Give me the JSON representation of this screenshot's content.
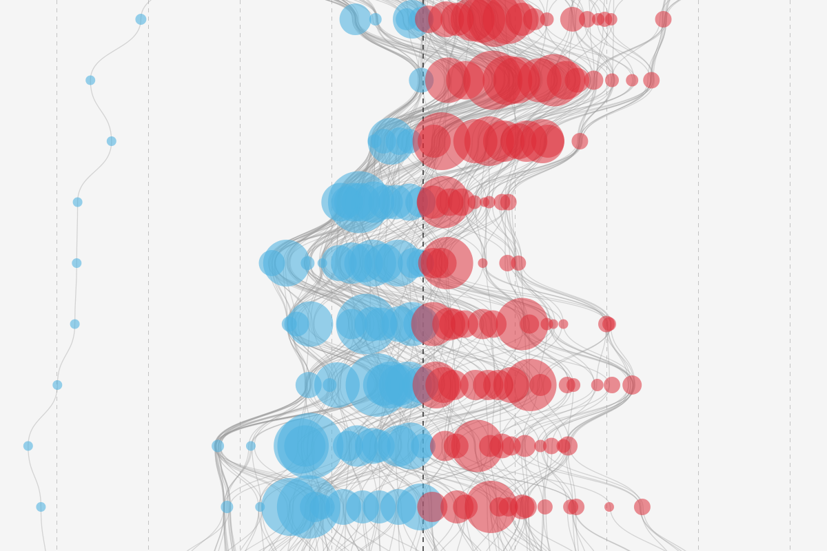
{
  "colors": {
    "background": "#f5f5f5",
    "dem": "#4eb1e0",
    "rep": "#dd2a35",
    "center_line": "#333333",
    "grid": "#c3c3c3",
    "trail": "#9c9c9c"
  },
  "chart_data": {
    "type": "scatter",
    "title": "",
    "xlabel": "",
    "ylabel": "",
    "legend": "none",
    "grid": true,
    "xlim": [
      -46,
      44
    ],
    "ylim": [
      0.7,
      9.1
    ],
    "x_gridlines": [
      -40,
      -30,
      -20,
      -10,
      0,
      10,
      20,
      30,
      40
    ],
    "center_x": 0,
    "series": [
      {
        "party": "dem",
        "points": [
          {
            "x": -7.4,
            "y": 1,
            "r": 23
          },
          {
            "x": -5.2,
            "y": 1,
            "r": 9
          },
          {
            "x": -1.2,
            "y": 1,
            "r": 28
          },
          {
            "x": -1.8,
            "y": 1,
            "r": 16
          },
          {
            "x": -0.2,
            "y": 1,
            "r": 18
          },
          {
            "x": -0.2,
            "y": 2,
            "r": 18
          },
          {
            "x": -3.5,
            "y": 3,
            "r": 34
          },
          {
            "x": -5.3,
            "y": 3,
            "r": 10
          },
          {
            "x": -4.3,
            "y": 3,
            "r": 18
          },
          {
            "x": -2.6,
            "y": 3,
            "r": 20
          },
          {
            "x": -1.5,
            "y": 3,
            "r": 18
          },
          {
            "x": -7.0,
            "y": 4,
            "r": 45
          },
          {
            "x": -9.0,
            "y": 4,
            "r": 28
          },
          {
            "x": -8.3,
            "y": 4,
            "r": 23
          },
          {
            "x": -7.6,
            "y": 4,
            "r": 28
          },
          {
            "x": -6.8,
            "y": 4,
            "r": 28
          },
          {
            "x": -5.4,
            "y": 4,
            "r": 30
          },
          {
            "x": -4.1,
            "y": 4,
            "r": 25
          },
          {
            "x": -3.0,
            "y": 4,
            "r": 25
          },
          {
            "x": -1.5,
            "y": 4,
            "r": 27
          },
          {
            "x": -0.3,
            "y": 4,
            "r": 22
          },
          {
            "x": -14.9,
            "y": 5,
            "r": 34
          },
          {
            "x": -16.5,
            "y": 5,
            "r": 19
          },
          {
            "x": -12.6,
            "y": 5,
            "r": 10
          },
          {
            "x": -11.0,
            "y": 5,
            "r": 7
          },
          {
            "x": -9.2,
            "y": 5,
            "r": 26
          },
          {
            "x": -7.8,
            "y": 5,
            "r": 30
          },
          {
            "x": -6.5,
            "y": 5,
            "r": 28
          },
          {
            "x": -5.5,
            "y": 5,
            "r": 34
          },
          {
            "x": -4.3,
            "y": 5,
            "r": 28
          },
          {
            "x": -2.7,
            "y": 5,
            "r": 34
          },
          {
            "x": -1.1,
            "y": 5,
            "r": 22
          },
          {
            "x": -0.3,
            "y": 5,
            "r": 20
          },
          {
            "x": -12.3,
            "y": 6,
            "r": 33
          },
          {
            "x": -14.6,
            "y": 6,
            "r": 11
          },
          {
            "x": -13.8,
            "y": 6,
            "r": 18
          },
          {
            "x": -7.8,
            "y": 6,
            "r": 22
          },
          {
            "x": -6.2,
            "y": 6,
            "r": 44
          },
          {
            "x": -5.6,
            "y": 6,
            "r": 25
          },
          {
            "x": -4.6,
            "y": 6,
            "r": 24
          },
          {
            "x": -2.6,
            "y": 6,
            "r": 26
          },
          {
            "x": -1.2,
            "y": 6,
            "r": 32
          },
          {
            "x": -0.2,
            "y": 6,
            "r": 26
          },
          {
            "x": -12.5,
            "y": 7,
            "r": 19
          },
          {
            "x": -10.2,
            "y": 7,
            "r": 10
          },
          {
            "x": -9.4,
            "y": 7,
            "r": 33
          },
          {
            "x": -5.0,
            "y": 7,
            "r": 46
          },
          {
            "x": -4.3,
            "y": 7,
            "r": 30
          },
          {
            "x": -3.6,
            "y": 7,
            "r": 34
          },
          {
            "x": -2.6,
            "y": 7,
            "r": 30
          },
          {
            "x": -1.6,
            "y": 7,
            "r": 34
          },
          {
            "x": -0.3,
            "y": 7,
            "r": 26
          },
          {
            "x": -22.4,
            "y": 8,
            "r": 9
          },
          {
            "x": -18.8,
            "y": 8,
            "r": 7
          },
          {
            "x": -13.3,
            "y": 8,
            "r": 40
          },
          {
            "x": -12.3,
            "y": 8,
            "r": 48
          },
          {
            "x": -12.9,
            "y": 8,
            "r": 30
          },
          {
            "x": -8.2,
            "y": 8,
            "r": 22
          },
          {
            "x": -7.2,
            "y": 8,
            "r": 30
          },
          {
            "x": -5.5,
            "y": 8,
            "r": 26
          },
          {
            "x": -4.9,
            "y": 8,
            "r": 24
          },
          {
            "x": -2.7,
            "y": 8,
            "r": 30
          },
          {
            "x": -1.4,
            "y": 8,
            "r": 34
          },
          {
            "x": 0.0,
            "y": 8,
            "r": 18
          },
          {
            "x": -21.4,
            "y": 9,
            "r": 9
          },
          {
            "x": -17.8,
            "y": 9,
            "r": 7
          },
          {
            "x": -14.5,
            "y": 9,
            "r": 42
          },
          {
            "x": -12.5,
            "y": 9,
            "r": 46
          },
          {
            "x": -11.8,
            "y": 9,
            "r": 22
          },
          {
            "x": -11.0,
            "y": 9,
            "r": 18
          },
          {
            "x": -8.7,
            "y": 9,
            "r": 26
          },
          {
            "x": -6.6,
            "y": 9,
            "r": 24
          },
          {
            "x": -4.8,
            "y": 9,
            "r": 24
          },
          {
            "x": -2.7,
            "y": 9,
            "r": 26
          },
          {
            "x": -0.3,
            "y": 9,
            "r": 34
          },
          {
            "x": -30.8,
            "y": 1,
            "r": 8
          },
          {
            "x": -36.3,
            "y": 2,
            "r": 7
          },
          {
            "x": -34.0,
            "y": 3,
            "r": 7
          },
          {
            "x": -37.7,
            "y": 4,
            "r": 7
          },
          {
            "x": -37.8,
            "y": 5,
            "r": 7
          },
          {
            "x": -38.0,
            "y": 6,
            "r": 7
          },
          {
            "x": -39.9,
            "y": 7,
            "r": 7
          },
          {
            "x": -43.1,
            "y": 8,
            "r": 7
          },
          {
            "x": -41.7,
            "y": 9,
            "r": 7
          }
        ]
      },
      {
        "party": "rep",
        "points": [
          {
            "x": 0.6,
            "y": 1,
            "r": 20
          },
          {
            "x": 2.5,
            "y": 1,
            "r": 26
          },
          {
            "x": 3.7,
            "y": 1,
            "r": 24
          },
          {
            "x": 5.4,
            "y": 1,
            "r": 32
          },
          {
            "x": 6.4,
            "y": 1,
            "r": 34
          },
          {
            "x": 7.8,
            "y": 1,
            "r": 40
          },
          {
            "x": 9.2,
            "y": 1,
            "r": 36
          },
          {
            "x": 10.8,
            "y": 1,
            "r": 24
          },
          {
            "x": 12.1,
            "y": 1,
            "r": 16
          },
          {
            "x": 13.5,
            "y": 1,
            "r": 10
          },
          {
            "x": 16.3,
            "y": 1,
            "r": 18
          },
          {
            "x": 17.9,
            "y": 1,
            "r": 12
          },
          {
            "x": 19.1,
            "y": 1,
            "r": 9
          },
          {
            "x": 19.8,
            "y": 1,
            "r": 11
          },
          {
            "x": 20.5,
            "y": 1,
            "r": 9
          },
          {
            "x": 26.2,
            "y": 1,
            "r": 12
          },
          {
            "x": 2.7,
            "y": 2,
            "r": 33
          },
          {
            "x": 4.6,
            "y": 2,
            "r": 28
          },
          {
            "x": 7.6,
            "y": 2,
            "r": 43
          },
          {
            "x": 9.2,
            "y": 2,
            "r": 36
          },
          {
            "x": 10.2,
            "y": 2,
            "r": 34
          },
          {
            "x": 12.7,
            "y": 2,
            "r": 32
          },
          {
            "x": 14.3,
            "y": 2,
            "r": 38
          },
          {
            "x": 15.6,
            "y": 2,
            "r": 28
          },
          {
            "x": 16.8,
            "y": 2,
            "r": 18
          },
          {
            "x": 18.6,
            "y": 2,
            "r": 14
          },
          {
            "x": 20.6,
            "y": 2,
            "r": 10
          },
          {
            "x": 22.8,
            "y": 2,
            "r": 9
          },
          {
            "x": 24.9,
            "y": 2,
            "r": 12
          },
          {
            "x": 1.2,
            "y": 3,
            "r": 24
          },
          {
            "x": 2.0,
            "y": 3,
            "r": 42
          },
          {
            "x": 5.7,
            "y": 3,
            "r": 32
          },
          {
            "x": 7.2,
            "y": 3,
            "r": 36
          },
          {
            "x": 8.8,
            "y": 3,
            "r": 30
          },
          {
            "x": 10.4,
            "y": 3,
            "r": 26
          },
          {
            "x": 11.3,
            "y": 3,
            "r": 30
          },
          {
            "x": 13.0,
            "y": 3,
            "r": 32
          },
          {
            "x": 13.6,
            "y": 3,
            "r": 24
          },
          {
            "x": 17.1,
            "y": 3,
            "r": 12
          },
          {
            "x": 1.1,
            "y": 4,
            "r": 24
          },
          {
            "x": 2.2,
            "y": 4,
            "r": 38
          },
          {
            "x": 2.9,
            "y": 4,
            "r": 20
          },
          {
            "x": 4.2,
            "y": 4,
            "r": 20
          },
          {
            "x": 5.6,
            "y": 4,
            "r": 10
          },
          {
            "x": 6.7,
            "y": 4,
            "r": 7
          },
          {
            "x": 7.2,
            "y": 4,
            "r": 9
          },
          {
            "x": 8.6,
            "y": 4,
            "r": 12
          },
          {
            "x": 9.3,
            "y": 4,
            "r": 12
          },
          {
            "x": 1.1,
            "y": 5,
            "r": 22
          },
          {
            "x": 2.6,
            "y": 5,
            "r": 38
          },
          {
            "x": 2.0,
            "y": 5,
            "r": 22
          },
          {
            "x": 6.5,
            "y": 5,
            "r": 7
          },
          {
            "x": 9.2,
            "y": 5,
            "r": 12
          },
          {
            "x": 10.4,
            "y": 5,
            "r": 11
          },
          {
            "x": 1.1,
            "y": 6,
            "r": 32
          },
          {
            "x": 2.8,
            "y": 6,
            "r": 24
          },
          {
            "x": 3.4,
            "y": 6,
            "r": 22
          },
          {
            "x": 4.5,
            "y": 6,
            "r": 20
          },
          {
            "x": 6.5,
            "y": 6,
            "r": 22
          },
          {
            "x": 7.6,
            "y": 6,
            "r": 20
          },
          {
            "x": 10.8,
            "y": 6,
            "r": 38
          },
          {
            "x": 11.6,
            "y": 6,
            "r": 14
          },
          {
            "x": 13.5,
            "y": 6,
            "r": 9
          },
          {
            "x": 14.2,
            "y": 6,
            "r": 7
          },
          {
            "x": 15.3,
            "y": 6,
            "r": 7
          },
          {
            "x": 20.0,
            "y": 6,
            "r": 12
          },
          {
            "x": 20.3,
            "y": 6,
            "r": 10
          },
          {
            "x": 1.4,
            "y": 7,
            "r": 34
          },
          {
            "x": 2.2,
            "y": 7,
            "r": 26
          },
          {
            "x": 3.3,
            "y": 7,
            "r": 22
          },
          {
            "x": 5.7,
            "y": 7,
            "r": 22
          },
          {
            "x": 7.1,
            "y": 7,
            "r": 22
          },
          {
            "x": 8.2,
            "y": 7,
            "r": 22
          },
          {
            "x": 9.6,
            "y": 7,
            "r": 26
          },
          {
            "x": 11.7,
            "y": 7,
            "r": 38
          },
          {
            "x": 12.8,
            "y": 7,
            "r": 16
          },
          {
            "x": 15.7,
            "y": 7,
            "r": 12
          },
          {
            "x": 16.4,
            "y": 7,
            "r": 10
          },
          {
            "x": 19.0,
            "y": 7,
            "r": 9
          },
          {
            "x": 20.6,
            "y": 7,
            "r": 12
          },
          {
            "x": 22.8,
            "y": 7,
            "r": 14
          },
          {
            "x": 2.4,
            "y": 8,
            "r": 22
          },
          {
            "x": 3.6,
            "y": 8,
            "r": 18
          },
          {
            "x": 5.9,
            "y": 8,
            "r": 38
          },
          {
            "x": 7.3,
            "y": 8,
            "r": 16
          },
          {
            "x": 8.6,
            "y": 8,
            "r": 18
          },
          {
            "x": 9.6,
            "y": 8,
            "r": 14
          },
          {
            "x": 11.1,
            "y": 8,
            "r": 16
          },
          {
            "x": 12.8,
            "y": 8,
            "r": 9
          },
          {
            "x": 14.0,
            "y": 8,
            "r": 12
          },
          {
            "x": 15.8,
            "y": 8,
            "r": 14
          },
          {
            "x": 15.3,
            "y": 8,
            "r": 10
          },
          {
            "x": 1.0,
            "y": 9,
            "r": 22
          },
          {
            "x": 3.7,
            "y": 9,
            "r": 24
          },
          {
            "x": 4.6,
            "y": 9,
            "r": 18
          },
          {
            "x": 7.4,
            "y": 9,
            "r": 38
          },
          {
            "x": 8.3,
            "y": 9,
            "r": 14
          },
          {
            "x": 9.3,
            "y": 9,
            "r": 14
          },
          {
            "x": 10.8,
            "y": 9,
            "r": 18
          },
          {
            "x": 11.2,
            "y": 9,
            "r": 16
          },
          {
            "x": 13.3,
            "y": 9,
            "r": 11
          },
          {
            "x": 16.1,
            "y": 9,
            "r": 11
          },
          {
            "x": 16.7,
            "y": 9,
            "r": 12
          },
          {
            "x": 20.3,
            "y": 9,
            "r": 7
          },
          {
            "x": 23.9,
            "y": 9,
            "r": 12
          }
        ]
      }
    ]
  }
}
